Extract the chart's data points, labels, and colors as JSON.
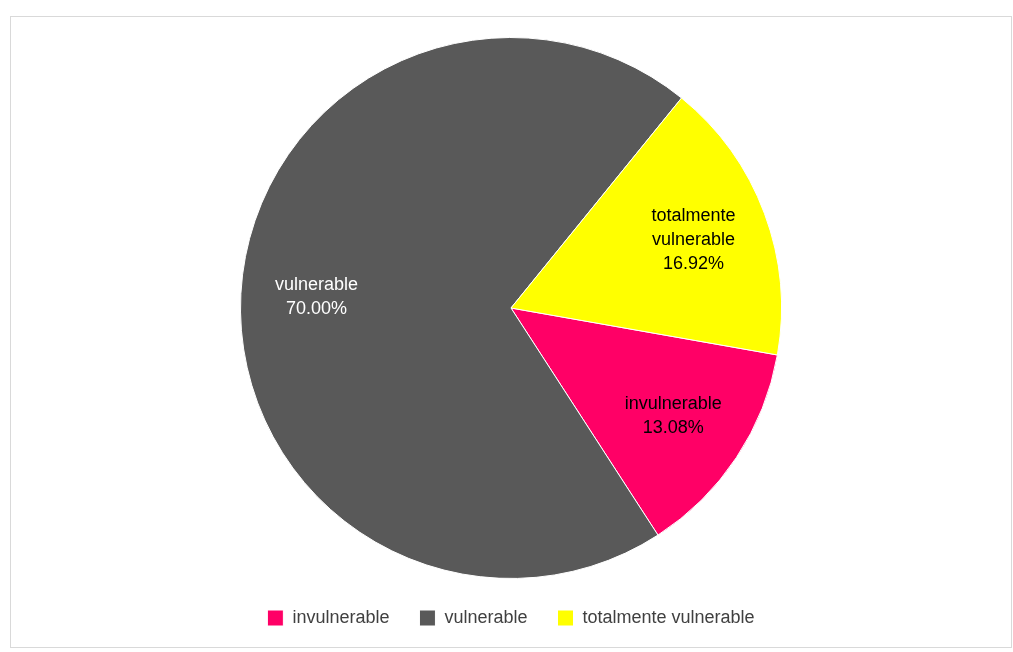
{
  "chart_data": {
    "type": "pie",
    "categories": [
      "invulnerable",
      "vulnerable",
      "totalmente vulnerable"
    ],
    "values": [
      13.08,
      70.0,
      16.92
    ],
    "colors": [
      "#ff0066",
      "#595959",
      "#ffff00"
    ],
    "value_labels": [
      "13.08%",
      "70.00%",
      "16.92%"
    ],
    "legend": "bottom"
  }
}
